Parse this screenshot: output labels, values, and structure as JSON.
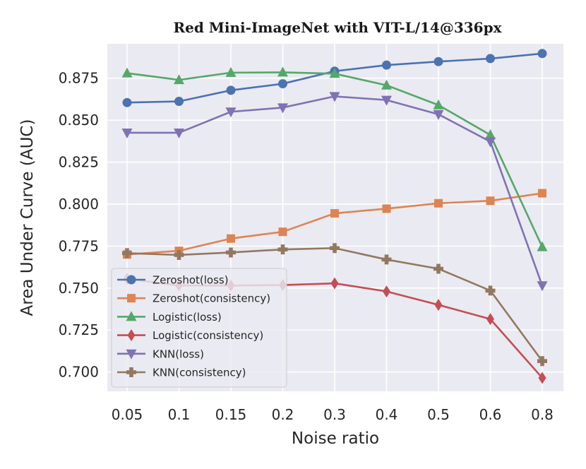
{
  "chart_data": {
    "type": "line",
    "title": "Red Mini-ImageNet with VIT-L/14@336px",
    "xlabel": "Noise ratio",
    "ylabel": "Area Under Curve (AUC)",
    "categories": [
      "0.05",
      "0.1",
      "0.15",
      "0.2",
      "0.3",
      "0.4",
      "0.5",
      "0.6",
      "0.8"
    ],
    "ylim": [
      0.6885,
      0.8955
    ],
    "yticks": [
      "0.700",
      "0.725",
      "0.750",
      "0.775",
      "0.800",
      "0.825",
      "0.850",
      "0.875"
    ],
    "grid": true,
    "legend_position": "lower-left",
    "series": [
      {
        "name": "Zeroshot(loss)",
        "color": "#4c72b0",
        "marker": "circle",
        "values": [
          0.8605,
          0.8612,
          0.8678,
          0.8717,
          0.8792,
          0.8828,
          0.8849,
          0.8867,
          0.8897
        ]
      },
      {
        "name": "Zeroshot(consistency)",
        "color": "#dd8452",
        "marker": "square",
        "values": [
          0.77,
          0.7722,
          0.7795,
          0.7835,
          0.7945,
          0.7973,
          0.8005,
          0.802,
          0.8065
        ]
      },
      {
        "name": "Logistic(loss)",
        "color": "#55a868",
        "marker": "triangle-up",
        "values": [
          0.878,
          0.874,
          0.8783,
          0.8785,
          0.8777,
          0.8708,
          0.859,
          0.8412,
          0.7745
        ]
      },
      {
        "name": "Logistic(consistency)",
        "color": "#c44e52",
        "marker": "diamond",
        "values": [
          0.7555,
          0.7515,
          0.7515,
          0.7518,
          0.7528,
          0.748,
          0.74,
          0.7315,
          0.6965
        ]
      },
      {
        "name": "KNN(loss)",
        "color": "#8172b3",
        "marker": "triangle-down",
        "values": [
          0.8425,
          0.8425,
          0.855,
          0.8575,
          0.8642,
          0.862,
          0.8535,
          0.8372,
          0.7515
        ]
      },
      {
        "name": "KNN(consistency)",
        "color": "#937860",
        "marker": "plus",
        "values": [
          0.7708,
          0.7697,
          0.7712,
          0.773,
          0.7738,
          0.767,
          0.7615,
          0.7485,
          0.7065
        ]
      }
    ]
  }
}
